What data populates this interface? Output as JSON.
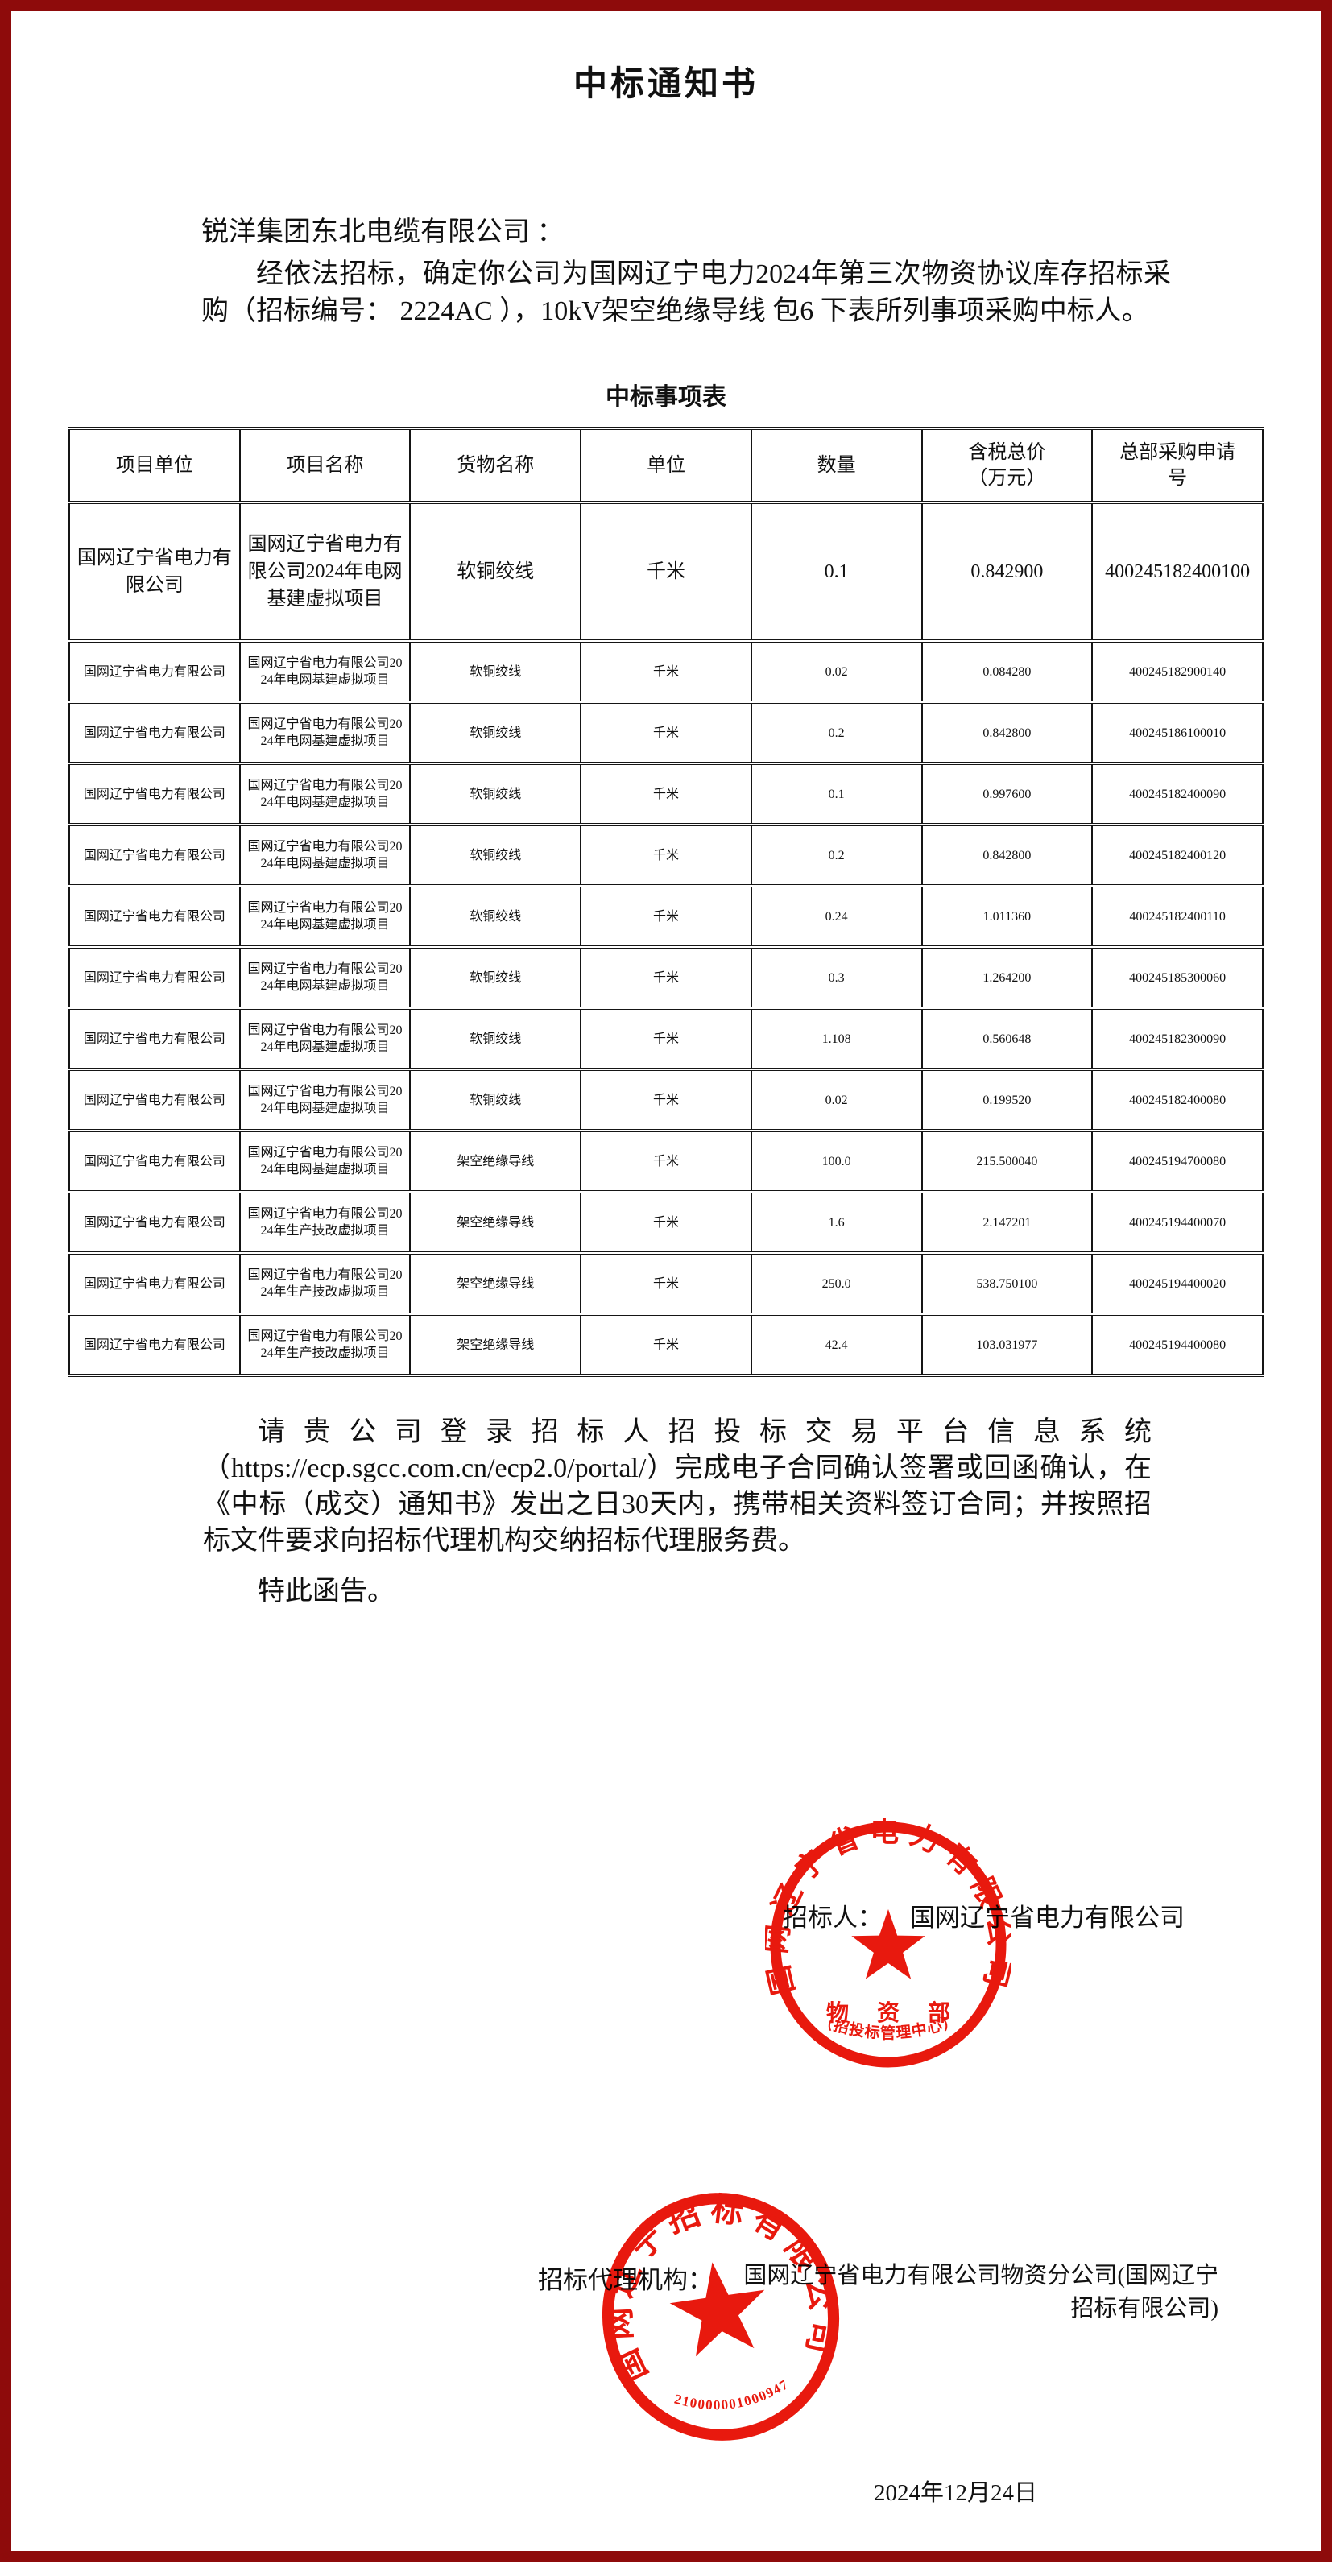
{
  "colors": {
    "frame": "#8e0b0b",
    "stamp": "#e8190e",
    "text": "#111111"
  },
  "doc": {
    "title": "中标通知书",
    "addressee": "锐洋集团东北电缆有限公司 ：",
    "paragraph1": "经依法招标，确定你公司为国网辽宁电力2024年第三次物资协议库存招标采购（招标编号： 2224AC ），10kV架空绝缘导线 包6 下表所列事项采购中标人。",
    "table_title": "中标事项表",
    "paragraph2": "请贵公司登录招标人招投标交易平台信息系统（https://ecp.sgcc.com.cn/ecp2.0/portal/）完成电子合同确认签署或回函确认，在《中标（成交）通知书》发出之日30天内，携带相关资料签订合同；并按照招标文件要求向招标代理机构交纳招标代理服务费。",
    "closing": "特此函告。",
    "date": "2024年12月24日"
  },
  "signature": {
    "bidder_label": "招标人：",
    "bidder_name": "国网辽宁省电力有限公司",
    "agency_label": "招标代理机构：",
    "agency_name": "国网辽宁省电力有限公司物资分公司(国网辽宁招标有限公司)"
  },
  "stamps": {
    "bidder_seal": {
      "arc_text": "国网辽宁省电力有限公司",
      "dept": "物 资 部",
      "sub": "（招投标管理中心）"
    },
    "agency_seal": {
      "arc_text": "国网辽宁招标有限公司",
      "serial": "210000001000947"
    }
  },
  "table": {
    "headers": [
      "项目单位",
      "项目名称",
      "货物名称",
      "单位",
      "数量",
      "含税总价\n（万元）",
      "总部采购申请\n号"
    ],
    "rows": [
      {
        "big": true,
        "cells": [
          "国网辽宁省电力有限公司",
          "国网辽宁省电力有限公司2024年电网基建虚拟项目",
          "软铜绞线",
          "千米",
          "0.1",
          "0.842900",
          "400245182400100"
        ]
      },
      {
        "big": false,
        "cells": [
          "国网辽宁省电力有限公司",
          "国网辽宁省电力有限公司2024年电网基建虚拟项目",
          "软铜绞线",
          "千米",
          "0.02",
          "0.084280",
          "400245182900140"
        ]
      },
      {
        "big": false,
        "cells": [
          "国网辽宁省电力有限公司",
          "国网辽宁省电力有限公司2024年电网基建虚拟项目",
          "软铜绞线",
          "千米",
          "0.2",
          "0.842800",
          "400245186100010"
        ]
      },
      {
        "big": false,
        "cells": [
          "国网辽宁省电力有限公司",
          "国网辽宁省电力有限公司2024年电网基建虚拟项目",
          "软铜绞线",
          "千米",
          "0.1",
          "0.997600",
          "400245182400090"
        ]
      },
      {
        "big": false,
        "cells": [
          "国网辽宁省电力有限公司",
          "国网辽宁省电力有限公司2024年电网基建虚拟项目",
          "软铜绞线",
          "千米",
          "0.2",
          "0.842800",
          "400245182400120"
        ]
      },
      {
        "big": false,
        "cells": [
          "国网辽宁省电力有限公司",
          "国网辽宁省电力有限公司2024年电网基建虚拟项目",
          "软铜绞线",
          "千米",
          "0.24",
          "1.011360",
          "400245182400110"
        ]
      },
      {
        "big": false,
        "cells": [
          "国网辽宁省电力有限公司",
          "国网辽宁省电力有限公司2024年电网基建虚拟项目",
          "软铜绞线",
          "千米",
          "0.3",
          "1.264200",
          "400245185300060"
        ]
      },
      {
        "big": false,
        "cells": [
          "国网辽宁省电力有限公司",
          "国网辽宁省电力有限公司2024年电网基建虚拟项目",
          "软铜绞线",
          "千米",
          "1.108",
          "0.560648",
          "400245182300090"
        ]
      },
      {
        "big": false,
        "cells": [
          "国网辽宁省电力有限公司",
          "国网辽宁省电力有限公司2024年电网基建虚拟项目",
          "软铜绞线",
          "千米",
          "0.02",
          "0.199520",
          "400245182400080"
        ]
      },
      {
        "big": false,
        "cells": [
          "国网辽宁省电力有限公司",
          "国网辽宁省电力有限公司2024年电网基建虚拟项目",
          "架空绝缘导线",
          "千米",
          "100.0",
          "215.500040",
          "400245194700080"
        ]
      },
      {
        "big": false,
        "cells": [
          "国网辽宁省电力有限公司",
          "国网辽宁省电力有限公司2024年生产技改虚拟项目",
          "架空绝缘导线",
          "千米",
          "1.6",
          "2.147201",
          "400245194400070"
        ]
      },
      {
        "big": false,
        "cells": [
          "国网辽宁省电力有限公司",
          "国网辽宁省电力有限公司2024年生产技改虚拟项目",
          "架空绝缘导线",
          "千米",
          "250.0",
          "538.750100",
          "400245194400020"
        ]
      },
      {
        "big": false,
        "cells": [
          "国网辽宁省电力有限公司",
          "国网辽宁省电力有限公司2024年生产技改虚拟项目",
          "架空绝缘导线",
          "千米",
          "42.4",
          "103.031977",
          "400245194400080"
        ]
      }
    ]
  }
}
